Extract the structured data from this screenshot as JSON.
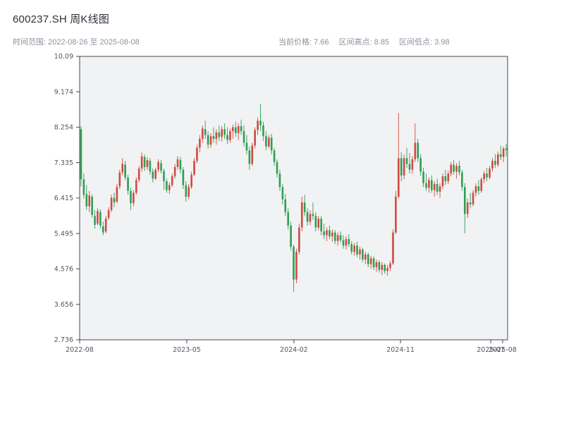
{
  "header": {
    "title": "600237.SH 周K线图",
    "time_range_text": "时间范围: 2022-08-26 至 2025-08-08",
    "stats": [
      {
        "label": "当前价格",
        "value": "7.66",
        "text": "当前价格: 7.66"
      },
      {
        "label": "区间高点",
        "value": "8.85",
        "text": "区间高点: 8.85"
      },
      {
        "label": "区间低点",
        "value": "3.98",
        "text": "区间低点: 3.98"
      }
    ]
  },
  "chart_data": {
    "type": "candlestick",
    "symbol": "600237.SH",
    "title": "600237.SH 周K线图",
    "frequency": "weekly",
    "time_range": {
      "start": "2022-08-26",
      "end": "2025-08-08"
    },
    "current_price": 7.66,
    "range_high": 8.85,
    "range_low": 3.98,
    "grid": false,
    "legend": false,
    "colors": {
      "up": "#cf4a3f",
      "down": "#2f9e52",
      "plot_bg": "#f1f2f4",
      "frame": "#46484d"
    },
    "y_axis": {
      "min": 2.736,
      "max": 10.09,
      "tick_values": [
        10.09,
        9.174,
        8.254,
        7.335,
        6.415,
        5.495,
        4.576,
        3.656,
        2.736
      ],
      "tick_labels": [
        "10.09",
        "9.174",
        "8.254",
        "7.335",
        "6.415",
        "5.495",
        "4.576",
        "3.656",
        "2.736"
      ]
    },
    "x_axis": {
      "ticks": [
        {
          "week": 0,
          "label": "2022-08"
        },
        {
          "week": 38.8,
          "label": "2023-05"
        },
        {
          "week": 77.6,
          "label": "2024-02"
        },
        {
          "week": 116.2,
          "label": "2024-11"
        },
        {
          "week": 148.9,
          "label": "2025-07"
        },
        {
          "week": 153.2,
          "label": "2025-08"
        }
      ]
    },
    "candles_ohlc": [
      [
        8.2,
        8.28,
        6.72,
        6.9
      ],
      [
        6.9,
        7.05,
        6.4,
        6.5
      ],
      [
        6.52,
        6.75,
        6.1,
        6.2
      ],
      [
        6.2,
        6.6,
        6.05,
        6.48
      ],
      [
        6.45,
        6.5,
        5.9,
        5.98
      ],
      [
        5.95,
        6.1,
        5.62,
        5.72
      ],
      [
        5.75,
        6.15,
        5.7,
        6.08
      ],
      [
        6.05,
        6.12,
        5.62,
        5.7
      ],
      [
        5.68,
        5.8,
        5.45,
        5.52
      ],
      [
        5.55,
        5.95,
        5.5,
        5.88
      ],
      [
        5.9,
        6.18,
        5.85,
        6.1
      ],
      [
        6.1,
        6.5,
        6.05,
        6.42
      ],
      [
        6.42,
        6.55,
        6.18,
        6.3
      ],
      [
        6.32,
        6.78,
        6.28,
        6.7
      ],
      [
        6.72,
        7.15,
        6.65,
        7.08
      ],
      [
        7.08,
        7.45,
        7.0,
        7.3
      ],
      [
        7.28,
        7.38,
        6.88,
        6.95
      ],
      [
        6.95,
        7.02,
        6.5,
        6.6
      ],
      [
        6.6,
        6.68,
        6.1,
        6.28
      ],
      [
        6.28,
        6.62,
        6.2,
        6.55
      ],
      [
        6.55,
        6.95,
        6.5,
        6.88
      ],
      [
        6.88,
        7.25,
        6.82,
        7.18
      ],
      [
        7.18,
        7.6,
        7.1,
        7.5
      ],
      [
        7.48,
        7.55,
        7.12,
        7.22
      ],
      [
        7.22,
        7.48,
        7.15,
        7.4
      ],
      [
        7.38,
        7.45,
        7.02,
        7.1
      ],
      [
        7.1,
        7.18,
        6.82,
        6.92
      ],
      [
        6.92,
        7.2,
        6.88,
        7.15
      ],
      [
        7.15,
        7.42,
        7.08,
        7.35
      ],
      [
        7.32,
        7.4,
        7.05,
        7.12
      ],
      [
        7.12,
        7.18,
        6.62,
        6.85
      ],
      [
        6.85,
        6.92,
        6.55,
        6.62
      ],
      [
        6.62,
        6.82,
        6.52,
        6.75
      ],
      [
        6.75,
        7.05,
        6.7,
        6.98
      ],
      [
        6.98,
        7.3,
        6.92,
        7.22
      ],
      [
        7.22,
        7.5,
        7.15,
        7.42
      ],
      [
        7.4,
        7.48,
        7.05,
        7.15
      ],
      [
        7.15,
        7.22,
        6.65,
        6.75
      ],
      [
        6.75,
        6.85,
        6.32,
        6.45
      ],
      [
        6.45,
        6.78,
        6.38,
        6.7
      ],
      [
        6.7,
        7.1,
        6.65,
        7.02
      ],
      [
        7.02,
        7.45,
        6.98,
        7.38
      ],
      [
        7.38,
        7.8,
        7.32,
        7.72
      ],
      [
        7.72,
        8.05,
        7.6,
        7.95
      ],
      [
        7.95,
        8.3,
        7.85,
        8.22
      ],
      [
        8.2,
        8.42,
        7.95,
        8.05
      ],
      [
        8.05,
        8.15,
        7.7,
        7.8
      ],
      [
        7.8,
        8.1,
        7.72,
        8.02
      ],
      [
        8.02,
        8.25,
        7.85,
        7.95
      ],
      [
        7.95,
        8.2,
        7.8,
        8.12
      ],
      [
        8.12,
        8.3,
        7.9,
        8.0
      ],
      [
        8.0,
        8.28,
        7.88,
        8.2
      ],
      [
        8.2,
        8.35,
        7.95,
        8.05
      ],
      [
        8.05,
        8.25,
        7.82,
        7.92
      ],
      [
        7.92,
        8.22,
        7.85,
        8.15
      ],
      [
        8.15,
        8.32,
        7.95,
        8.25
      ],
      [
        8.25,
        8.4,
        8.0,
        8.1
      ],
      [
        8.1,
        8.35,
        7.92,
        8.28
      ],
      [
        8.28,
        8.45,
        8.05,
        8.15
      ],
      [
        8.15,
        8.3,
        7.75,
        7.85
      ],
      [
        7.85,
        8.05,
        7.55,
        7.65
      ],
      [
        7.65,
        7.75,
        7.15,
        7.3
      ],
      [
        7.3,
        7.85,
        7.25,
        7.78
      ],
      [
        7.78,
        8.25,
        7.7,
        8.18
      ],
      [
        8.18,
        8.5,
        8.05,
        8.42
      ],
      [
        8.42,
        8.85,
        8.15,
        8.3
      ],
      [
        8.3,
        8.4,
        7.9,
        8.02
      ],
      [
        8.02,
        8.15,
        7.65,
        7.75
      ],
      [
        7.75,
        8.05,
        7.7,
        7.98
      ],
      [
        7.98,
        8.08,
        7.55,
        7.65
      ],
      [
        7.65,
        7.72,
        7.25,
        7.35
      ],
      [
        7.35,
        7.42,
        6.95,
        7.05
      ],
      [
        7.05,
        7.15,
        6.6,
        6.7
      ],
      [
        6.7,
        6.78,
        6.25,
        6.38
      ],
      [
        6.38,
        6.52,
        5.95,
        6.05
      ],
      [
        6.05,
        6.15,
        5.6,
        5.7
      ],
      [
        5.7,
        5.8,
        5.05,
        5.15
      ],
      [
        5.15,
        5.2,
        3.98,
        4.3
      ],
      [
        4.3,
        5.1,
        4.2,
        5.02
      ],
      [
        5.02,
        5.75,
        4.95,
        5.65
      ],
      [
        5.65,
        6.45,
        5.55,
        6.3
      ],
      [
        6.3,
        6.5,
        5.95,
        6.05
      ],
      [
        6.05,
        6.15,
        5.7,
        5.8
      ],
      [
        5.8,
        6.1,
        5.72,
        6.0
      ],
      [
        6.0,
        6.3,
        5.85,
        5.95
      ],
      [
        5.95,
        6.05,
        5.55,
        5.65
      ],
      [
        5.65,
        5.95,
        5.58,
        5.88
      ],
      [
        5.88,
        5.95,
        5.45,
        5.55
      ],
      [
        5.55,
        5.75,
        5.35,
        5.45
      ],
      [
        5.45,
        5.65,
        5.3,
        5.58
      ],
      [
        5.58,
        5.7,
        5.35,
        5.42
      ],
      [
        5.42,
        5.6,
        5.28,
        5.52
      ],
      [
        5.52,
        5.58,
        5.22,
        5.3
      ],
      [
        5.3,
        5.52,
        5.18,
        5.45
      ],
      [
        5.45,
        5.55,
        5.25,
        5.32
      ],
      [
        5.32,
        5.45,
        5.1,
        5.18
      ],
      [
        5.18,
        5.42,
        5.08,
        5.35
      ],
      [
        5.35,
        5.48,
        5.15,
        5.22
      ],
      [
        5.22,
        5.3,
        4.95,
        5.02
      ],
      [
        5.02,
        5.25,
        4.92,
        5.18
      ],
      [
        5.18,
        5.28,
        4.88,
        4.95
      ],
      [
        4.95,
        5.15,
        4.82,
        5.08
      ],
      [
        5.08,
        5.12,
        4.75,
        4.82
      ],
      [
        4.82,
        5.02,
        4.7,
        4.95
      ],
      [
        4.95,
        5.0,
        4.62,
        4.7
      ],
      [
        4.7,
        4.92,
        4.58,
        4.85
      ],
      [
        4.85,
        4.9,
        4.55,
        4.62
      ],
      [
        4.62,
        4.82,
        4.5,
        4.75
      ],
      [
        4.75,
        4.8,
        4.48,
        4.55
      ],
      [
        4.55,
        4.75,
        4.42,
        4.68
      ],
      [
        4.68,
        4.72,
        4.45,
        4.52
      ],
      [
        4.52,
        4.68,
        4.4,
        4.6
      ],
      [
        4.6,
        4.78,
        4.52,
        4.72
      ],
      [
        4.72,
        5.6,
        4.68,
        5.52
      ],
      [
        5.52,
        6.6,
        5.48,
        6.45
      ],
      [
        6.45,
        8.62,
        6.4,
        7.45
      ],
      [
        7.45,
        7.6,
        6.85,
        7.0
      ],
      [
        7.0,
        7.55,
        6.9,
        7.45
      ],
      [
        7.45,
        7.72,
        7.2,
        7.3
      ],
      [
        7.3,
        7.58,
        7.05,
        7.15
      ],
      [
        7.15,
        7.5,
        7.05,
        7.42
      ],
      [
        7.42,
        8.35,
        7.35,
        7.85
      ],
      [
        7.85,
        7.95,
        7.35,
        7.45
      ],
      [
        7.45,
        7.55,
        7.0,
        7.1
      ],
      [
        7.1,
        7.2,
        6.7,
        6.8
      ],
      [
        6.8,
        7.05,
        6.6,
        6.68
      ],
      [
        6.68,
        6.95,
        6.55,
        6.88
      ],
      [
        6.88,
        7.0,
        6.55,
        6.62
      ],
      [
        6.62,
        6.85,
        6.45,
        6.78
      ],
      [
        6.78,
        6.92,
        6.5,
        6.58
      ],
      [
        6.58,
        6.8,
        6.42,
        6.72
      ],
      [
        6.72,
        7.05,
        6.65,
        6.98
      ],
      [
        6.98,
        7.15,
        6.75,
        6.85
      ],
      [
        6.85,
        7.12,
        6.78,
        7.05
      ],
      [
        7.05,
        7.35,
        6.98,
        7.28
      ],
      [
        7.28,
        7.4,
        7.02,
        7.1
      ],
      [
        7.1,
        7.32,
        6.92,
        7.25
      ],
      [
        7.25,
        7.38,
        7.0,
        7.08
      ],
      [
        7.08,
        7.15,
        6.6,
        6.7
      ],
      [
        6.7,
        6.8,
        5.5,
        6.0
      ],
      [
        6.0,
        6.4,
        5.9,
        6.3
      ],
      [
        6.3,
        6.55,
        6.15,
        6.25
      ],
      [
        6.25,
        6.62,
        6.2,
        6.55
      ],
      [
        6.55,
        6.8,
        6.45,
        6.72
      ],
      [
        6.72,
        6.88,
        6.5,
        6.6
      ],
      [
        6.6,
        6.95,
        6.55,
        6.9
      ],
      [
        6.9,
        7.12,
        6.8,
        7.05
      ],
      [
        7.05,
        7.2,
        6.85,
        6.95
      ],
      [
        6.95,
        7.25,
        6.9,
        7.18
      ],
      [
        7.18,
        7.45,
        7.1,
        7.38
      ],
      [
        7.38,
        7.55,
        7.2,
        7.28
      ],
      [
        7.28,
        7.62,
        7.22,
        7.55
      ],
      [
        7.55,
        7.78,
        7.4,
        7.48
      ],
      [
        7.48,
        7.75,
        7.35,
        7.7
      ],
      [
        7.7,
        7.82,
        7.5,
        7.66
      ]
    ]
  }
}
